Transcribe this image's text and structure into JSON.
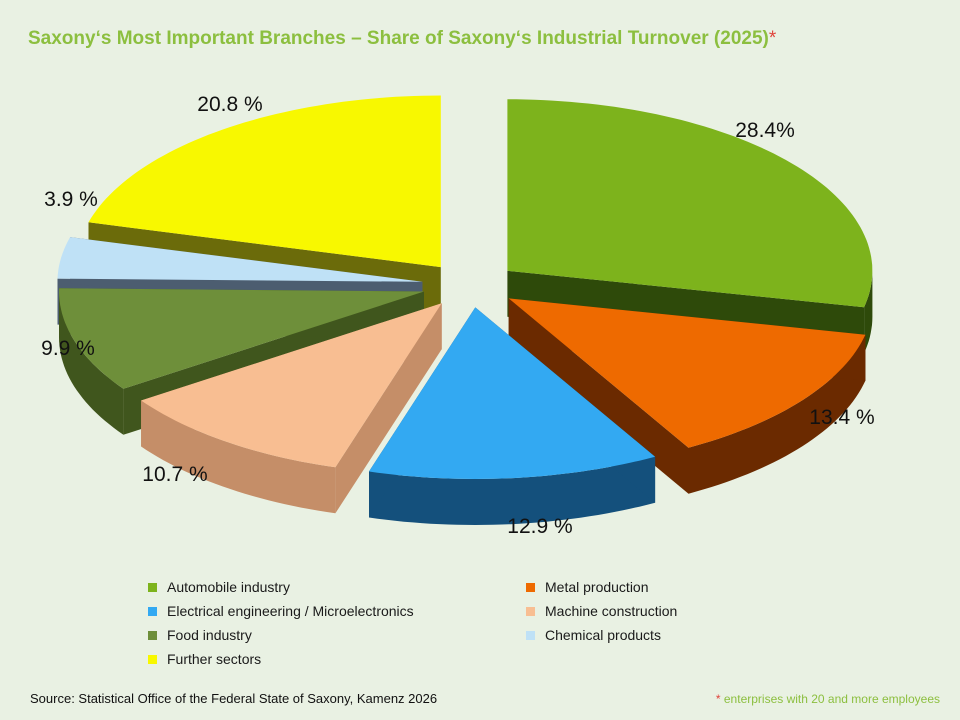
{
  "chart_data": {
    "type": "pie",
    "title": "Saxony‘s  Most Important Branches – Share of Saxony‘s Industrial  Turnover (2025)",
    "title_marker": "*",
    "slices": [
      {
        "name": "Automobile industry",
        "value": 28.4,
        "label": "28.4%",
        "color": "#7db31c",
        "side": "#2e4a0a"
      },
      {
        "name": "Metal production",
        "value": 13.4,
        "label": "13.4 %",
        "color": "#ee6a00",
        "side": "#6b2a00"
      },
      {
        "name": "Electrical engineering / Microelectronics",
        "value": 12.9,
        "label": "12.9 %",
        "color": "#33a9f2",
        "side": "#14507c"
      },
      {
        "name": "Machine construction",
        "value": 10.7,
        "label": "10.7 %",
        "color": "#f8be92",
        "side": "#c58e68"
      },
      {
        "name": "Food industry",
        "value": 9.9,
        "label": "9.9 %",
        "color": "#6e8f3a",
        "side": "#40561d"
      },
      {
        "name": "Chemical products",
        "value": 3.9,
        "label": "3.9 %",
        "color": "#bfe1f6",
        "side": "#4c5d70"
      },
      {
        "name": "Further sectors",
        "value": 20.8,
        "label": "20.8 %",
        "color": "#f8f800",
        "side": "#6b6b0a"
      }
    ],
    "legend_placement": "bottom",
    "exploded": true,
    "three_d": true
  },
  "legend": {
    "items": [
      {
        "label": "Automobile industry",
        "color": "#7db31c"
      },
      {
        "label": "Metal production",
        "color": "#ee6a00"
      },
      {
        "label": "Electrical engineering / Microelectronics",
        "color": "#33a9f2"
      },
      {
        "label": "Machine construction",
        "color": "#f8be92"
      },
      {
        "label": "Food industry",
        "color": "#6e8f3a"
      },
      {
        "label": "Chemical products",
        "color": "#bfe1f6"
      },
      {
        "label": "Further sectors",
        "color": "#f8f800"
      }
    ]
  },
  "footer": {
    "source": "Source: Statistical Office of the Federal State of Saxony, Kamenz 2026",
    "footnote_marker": "*",
    "footnote": " enterprises with 20 and more employees"
  },
  "colors": {
    "background": "#e9f1e3",
    "title": "#8cbf3f",
    "marker": "#e0443c"
  }
}
